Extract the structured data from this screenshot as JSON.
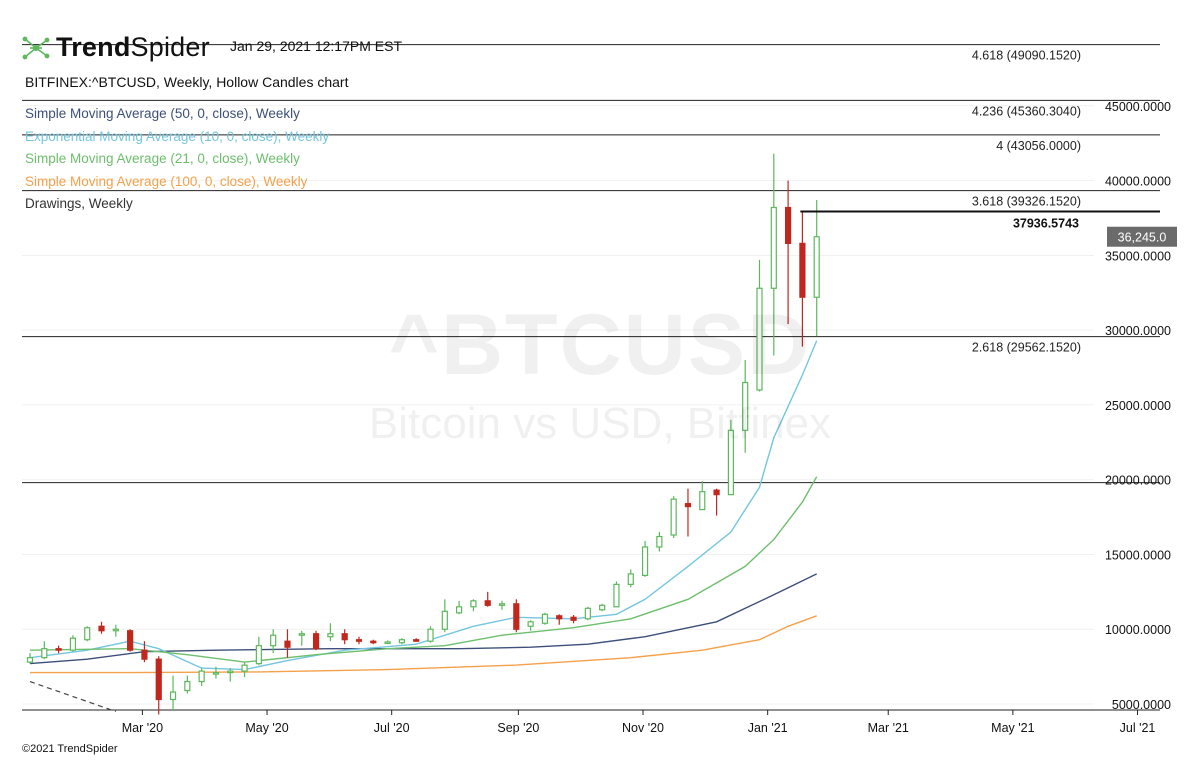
{
  "brand": {
    "name_bold": "Trend",
    "name_light": "Spider"
  },
  "timestamp": "Jan 29, 2021 12:17PM EST",
  "chart_title": "BITFINEX:^BTCUSD, Weekly, Hollow Candles chart",
  "indicators": [
    {
      "label": "Simple Moving Average (50, 0, close), Weekly",
      "color": "#3d4f7a"
    },
    {
      "label": "Exponential Moving Average (10, 0, close), Weekly",
      "color": "#74c6e0"
    },
    {
      "label": "Simple Moving Average (21, 0, close), Weekly",
      "color": "#6dbf6d"
    },
    {
      "label": "Simple Moving Average (100, 0, close), Weekly",
      "color": "#f5a04a"
    },
    {
      "label": "Drawings, Weekly",
      "color": "#333333"
    }
  ],
  "watermark": {
    "symbol": "^BTCUSD",
    "subtitle": "Bitcoin vs USD, Bitfinex"
  },
  "copyright": "©2021 TrendSpider",
  "colors": {
    "up": "#5cb85c",
    "down": "#c0281e",
    "price_badge": "#6b6b6b"
  },
  "chart_data": {
    "type": "candlestick",
    "title": "BITFINEX:^BTCUSD, Weekly, Hollow Candles chart",
    "y_range": [
      4600,
      49400
    ],
    "y_ticks": [
      {
        "v": 45000,
        "label": "45000.0000"
      },
      {
        "v": 40000,
        "label": "40000.0000"
      },
      {
        "v": 35000,
        "label": "35000.0000"
      },
      {
        "v": 30000,
        "label": "30000.0000"
      },
      {
        "v": 25000,
        "label": "25000.0000"
      },
      {
        "v": 20000,
        "label": "20000.0000"
      },
      {
        "v": 15000,
        "label": "15000.0000"
      },
      {
        "v": 10000,
        "label": "10000.0000"
      },
      {
        "v": 5000,
        "label": "5000.0000"
      }
    ],
    "x_range": [
      "2020-01-06",
      "2021-07-12"
    ],
    "x_ticks": [
      {
        "date": "2020-03-01",
        "label": "Mar '20"
      },
      {
        "date": "2020-05-01",
        "label": "May '20"
      },
      {
        "date": "2020-07-01",
        "label": "Jul '20"
      },
      {
        "date": "2020-09-01",
        "label": "Sep '20"
      },
      {
        "date": "2020-11-01",
        "label": "Nov '20"
      },
      {
        "date": "2021-01-01",
        "label": "Jan '21"
      },
      {
        "date": "2021-03-01",
        "label": "Mar '21"
      },
      {
        "date": "2021-05-01",
        "label": "May '21"
      },
      {
        "date": "2021-07-01",
        "label": "Jul '21"
      }
    ],
    "fib_levels": [
      {
        "v": 49090.152,
        "label": "4.618 (49090.1520)"
      },
      {
        "v": 45360.304,
        "label": "4.236 (45360.3040)"
      },
      {
        "v": 43056.0,
        "label": "4 (43056.0000)"
      },
      {
        "v": 39326.152,
        "label": "3.618 (39326.1520)"
      },
      {
        "v": 29562.152,
        "label": "2.618 (29562.1520)"
      },
      {
        "v": 19800.0,
        "label": ""
      }
    ],
    "horizontal_line": {
      "v": 37936.5743,
      "label": "37936.5743",
      "from": "2021-01-17"
    },
    "last_price": {
      "v": 36245.0,
      "label": "36,245.0"
    },
    "candles": [
      {
        "date": "2020-01-06",
        "o": 7800,
        "h": 8400,
        "l": 7700,
        "c": 8100
      },
      {
        "date": "2020-01-13",
        "o": 8100,
        "h": 9200,
        "l": 8000,
        "c": 8700
      },
      {
        "date": "2020-01-20",
        "o": 8700,
        "h": 8900,
        "l": 8400,
        "c": 8600
      },
      {
        "date": "2020-01-27",
        "o": 8600,
        "h": 9600,
        "l": 8500,
        "c": 9400
      },
      {
        "date": "2020-02-03",
        "o": 9300,
        "h": 10200,
        "l": 9200,
        "c": 10100
      },
      {
        "date": "2020-02-10",
        "o": 10200,
        "h": 10500,
        "l": 9700,
        "c": 9900
      },
      {
        "date": "2020-02-17",
        "o": 9900,
        "h": 10300,
        "l": 9500,
        "c": 10000
      },
      {
        "date": "2020-02-24",
        "o": 9900,
        "h": 10000,
        "l": 8500,
        "c": 8600
      },
      {
        "date": "2020-03-02",
        "o": 8600,
        "h": 9200,
        "l": 7800,
        "c": 8000
      },
      {
        "date": "2020-03-09",
        "o": 8000,
        "h": 8200,
        "l": 4300,
        "c": 5300
      },
      {
        "date": "2020-03-16",
        "o": 5300,
        "h": 6900,
        "l": 4600,
        "c": 5800
      },
      {
        "date": "2020-03-23",
        "o": 5900,
        "h": 6900,
        "l": 5700,
        "c": 6500
      },
      {
        "date": "2020-03-30",
        "o": 6500,
        "h": 7400,
        "l": 6200,
        "c": 7200
      },
      {
        "date": "2020-04-06",
        "o": 7100,
        "h": 7500,
        "l": 6700,
        "c": 7100
      },
      {
        "date": "2020-04-13",
        "o": 7100,
        "h": 7400,
        "l": 6500,
        "c": 7200
      },
      {
        "date": "2020-04-20",
        "o": 7200,
        "h": 7800,
        "l": 6800,
        "c": 7600
      },
      {
        "date": "2020-04-27",
        "o": 7700,
        "h": 9500,
        "l": 7600,
        "c": 8900
      },
      {
        "date": "2020-05-04",
        "o": 8900,
        "h": 10000,
        "l": 8400,
        "c": 9600
      },
      {
        "date": "2020-05-11",
        "o": 9200,
        "h": 10000,
        "l": 8100,
        "c": 8800
      },
      {
        "date": "2020-05-18",
        "o": 9600,
        "h": 9900,
        "l": 8900,
        "c": 9700
      },
      {
        "date": "2020-05-25",
        "o": 9700,
        "h": 9900,
        "l": 8600,
        "c": 8700
      },
      {
        "date": "2020-06-01",
        "o": 9500,
        "h": 10400,
        "l": 9200,
        "c": 9700
      },
      {
        "date": "2020-06-08",
        "o": 9700,
        "h": 10000,
        "l": 9000,
        "c": 9300
      },
      {
        "date": "2020-06-15",
        "o": 9300,
        "h": 9500,
        "l": 9000,
        "c": 9200
      },
      {
        "date": "2020-06-22",
        "o": 9200,
        "h": 9300,
        "l": 9000,
        "c": 9100
      },
      {
        "date": "2020-06-29",
        "o": 9100,
        "h": 9250,
        "l": 9000,
        "c": 9150
      },
      {
        "date": "2020-07-06",
        "o": 9100,
        "h": 9400,
        "l": 9000,
        "c": 9300
      },
      {
        "date": "2020-07-13",
        "o": 9300,
        "h": 9400,
        "l": 9150,
        "c": 9200
      },
      {
        "date": "2020-07-20",
        "o": 9200,
        "h": 10200,
        "l": 9100,
        "c": 10000
      },
      {
        "date": "2020-07-27",
        "o": 10000,
        "h": 12000,
        "l": 9800,
        "c": 11200
      },
      {
        "date": "2020-08-03",
        "o": 11100,
        "h": 11900,
        "l": 11000,
        "c": 11500
      },
      {
        "date": "2020-08-10",
        "o": 11500,
        "h": 12000,
        "l": 11200,
        "c": 11900
      },
      {
        "date": "2020-08-17",
        "o": 11900,
        "h": 12500,
        "l": 11500,
        "c": 11600
      },
      {
        "date": "2020-08-24",
        "o": 11600,
        "h": 11900,
        "l": 11300,
        "c": 11700
      },
      {
        "date": "2020-08-31",
        "o": 11700,
        "h": 12000,
        "l": 9800,
        "c": 10000
      },
      {
        "date": "2020-09-07",
        "o": 10200,
        "h": 10600,
        "l": 9900,
        "c": 10500
      },
      {
        "date": "2020-09-14",
        "o": 10400,
        "h": 11100,
        "l": 10300,
        "c": 11000
      },
      {
        "date": "2020-09-21",
        "o": 10900,
        "h": 11000,
        "l": 10300,
        "c": 10700
      },
      {
        "date": "2020-09-28",
        "o": 10800,
        "h": 10950,
        "l": 10400,
        "c": 10600
      },
      {
        "date": "2020-10-05",
        "o": 10700,
        "h": 11500,
        "l": 10600,
        "c": 11400
      },
      {
        "date": "2020-10-12",
        "o": 11300,
        "h": 11700,
        "l": 11200,
        "c": 11600
      },
      {
        "date": "2020-10-19",
        "o": 11500,
        "h": 13200,
        "l": 11500,
        "c": 13000
      },
      {
        "date": "2020-10-26",
        "o": 13000,
        "h": 14000,
        "l": 12800,
        "c": 13700
      },
      {
        "date": "2020-11-02",
        "o": 13600,
        "h": 15900,
        "l": 13500,
        "c": 15500
      },
      {
        "date": "2020-11-09",
        "o": 15500,
        "h": 16500,
        "l": 15200,
        "c": 16200
      },
      {
        "date": "2020-11-16",
        "o": 16300,
        "h": 18900,
        "l": 16100,
        "c": 18700
      },
      {
        "date": "2020-11-23",
        "o": 18400,
        "h": 19400,
        "l": 16200,
        "c": 18200
      },
      {
        "date": "2020-11-30",
        "o": 18000,
        "h": 19900,
        "l": 18000,
        "c": 19200
      },
      {
        "date": "2020-12-07",
        "o": 19300,
        "h": 19400,
        "l": 17600,
        "c": 19000
      },
      {
        "date": "2020-12-14",
        "o": 19000,
        "h": 24000,
        "l": 19000,
        "c": 23300
      },
      {
        "date": "2020-12-21",
        "o": 23300,
        "h": 28000,
        "l": 21800,
        "c": 26500
      },
      {
        "date": "2020-12-28",
        "o": 26000,
        "h": 34700,
        "l": 25900,
        "c": 32800
      },
      {
        "date": "2021-01-04",
        "o": 32800,
        "h": 41800,
        "l": 28300,
        "c": 38200
      },
      {
        "date": "2021-01-11",
        "o": 38200,
        "h": 40000,
        "l": 30400,
        "c": 35800
      },
      {
        "date": "2021-01-18",
        "o": 35800,
        "h": 37900,
        "l": 28900,
        "c": 32200
      },
      {
        "date": "2021-01-25",
        "o": 32200,
        "h": 38700,
        "l": 29600,
        "c": 36245
      }
    ],
    "series": [
      {
        "name": "Simple Moving Average (50, 0, close), Weekly",
        "color": "#3d4f7a",
        "points": [
          [
            "2020-01-06",
            7700
          ],
          [
            "2020-02-03",
            8000
          ],
          [
            "2020-03-02",
            8500
          ],
          [
            "2020-04-06",
            8600
          ],
          [
            "2020-05-04",
            8650
          ],
          [
            "2020-06-01",
            8700
          ],
          [
            "2020-07-06",
            8700
          ],
          [
            "2020-08-03",
            8700
          ],
          [
            "2020-09-07",
            8800
          ],
          [
            "2020-10-05",
            9000
          ],
          [
            "2020-11-02",
            9500
          ],
          [
            "2020-12-07",
            10500
          ],
          [
            "2021-01-04",
            12300
          ],
          [
            "2021-01-25",
            13700
          ]
        ]
      },
      {
        "name": "Exponential Moving Average (10, 0, close), Weekly",
        "color": "#74c6e0",
        "points": [
          [
            "2020-01-06",
            8100
          ],
          [
            "2020-02-03",
            8600
          ],
          [
            "2020-02-24",
            9200
          ],
          [
            "2020-03-09",
            8700
          ],
          [
            "2020-03-30",
            7400
          ],
          [
            "2020-04-20",
            7300
          ],
          [
            "2020-05-11",
            7900
          ],
          [
            "2020-06-08",
            8600
          ],
          [
            "2020-07-13",
            9000
          ],
          [
            "2020-08-10",
            10200
          ],
          [
            "2020-08-31",
            10800
          ],
          [
            "2020-09-28",
            10700
          ],
          [
            "2020-10-19",
            11000
          ],
          [
            "2020-11-02",
            12000
          ],
          [
            "2020-11-23",
            14200
          ],
          [
            "2020-12-14",
            16500
          ],
          [
            "2020-12-28",
            19500
          ],
          [
            "2021-01-04",
            22800
          ],
          [
            "2021-01-18",
            27000
          ],
          [
            "2021-01-25",
            29300
          ]
        ]
      },
      {
        "name": "Simple Moving Average (21, 0, close), Weekly",
        "color": "#6dbf6d",
        "points": [
          [
            "2020-01-06",
            8600
          ],
          [
            "2020-02-24",
            8700
          ],
          [
            "2020-03-23",
            8300
          ],
          [
            "2020-04-20",
            7800
          ],
          [
            "2020-05-25",
            8300
          ],
          [
            "2020-06-29",
            8700
          ],
          [
            "2020-07-27",
            8900
          ],
          [
            "2020-08-24",
            9600
          ],
          [
            "2020-09-28",
            10100
          ],
          [
            "2020-10-26",
            10700
          ],
          [
            "2020-11-23",
            12000
          ],
          [
            "2020-12-21",
            14200
          ],
          [
            "2021-01-04",
            16000
          ],
          [
            "2021-01-18",
            18500
          ],
          [
            "2021-01-25",
            20200
          ]
        ]
      },
      {
        "name": "Simple Moving Average (100, 0, close), Weekly",
        "color": "#f5a04a",
        "points": [
          [
            "2020-01-06",
            7100
          ],
          [
            "2020-02-24",
            7100
          ],
          [
            "2020-04-27",
            7150
          ],
          [
            "2020-06-29",
            7300
          ],
          [
            "2020-08-31",
            7600
          ],
          [
            "2020-10-26",
            8100
          ],
          [
            "2020-11-30",
            8600
          ],
          [
            "2020-12-28",
            9300
          ],
          [
            "2021-01-11",
            10200
          ],
          [
            "2021-01-25",
            10900
          ]
        ]
      }
    ],
    "trendline": {
      "from": [
        "2020-01-06",
        6500
      ],
      "to": [
        "2020-02-17",
        4500
      ]
    }
  }
}
